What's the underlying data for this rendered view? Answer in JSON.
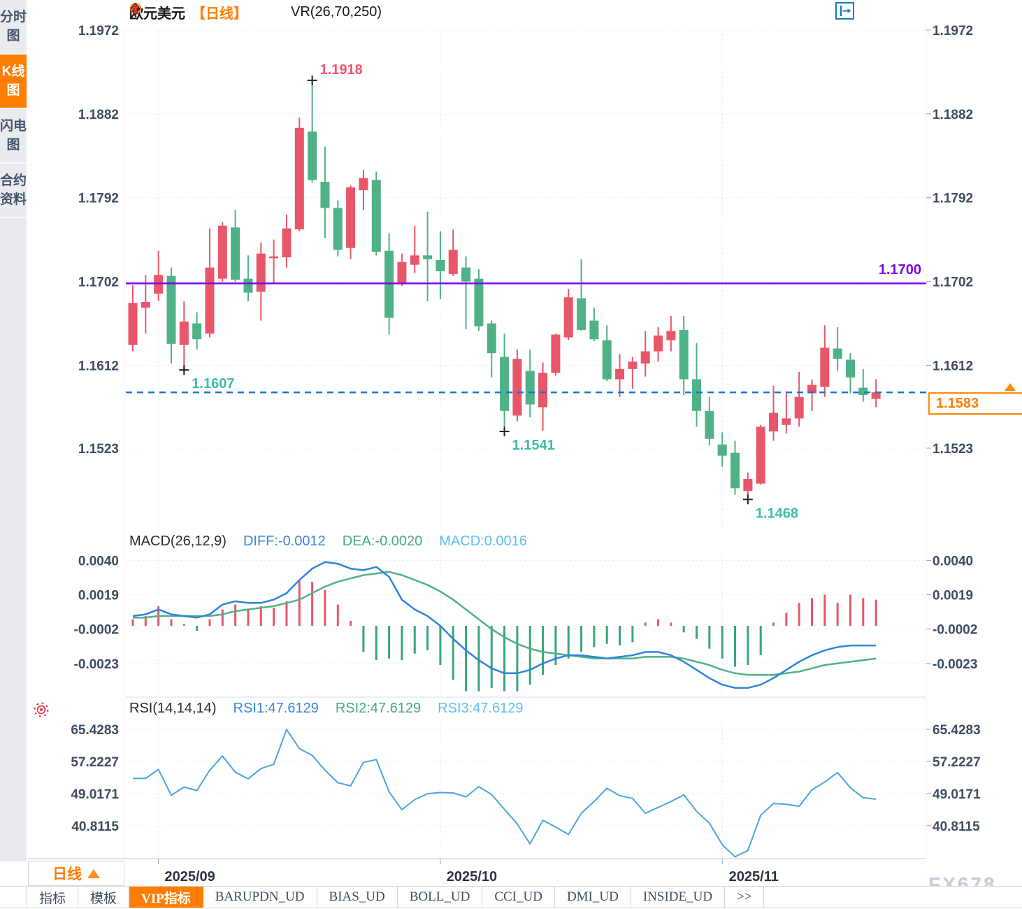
{
  "app": {
    "watermark": "FX678"
  },
  "sidebar": {
    "items": [
      {
        "label": "分时图",
        "active": false
      },
      {
        "label": "K线图",
        "active": true
      },
      {
        "label": "闪电图",
        "active": false
      },
      {
        "label": "合约资料",
        "active": false
      }
    ]
  },
  "header": {
    "symbol": "欧元美元",
    "period_tag": "【日线】",
    "vr_indicator": "VR(26,70,250)",
    "icons": [
      "plus-circle-icon",
      "red-up-arrow-icon"
    ]
  },
  "toolbar": {
    "icons": [
      "pan-move-icon",
      "fit-time-axis-icon",
      "fit-price-axis-icon",
      "go-to-latest-icon"
    ],
    "active_index": 2
  },
  "period_selector": {
    "label": "日线",
    "arrow_icon": "triangle-up-icon"
  },
  "tabs": [
    {
      "label": "指标",
      "active": false
    },
    {
      "label": "模板",
      "active": false
    },
    {
      "label": "VIP指标",
      "active": true
    },
    {
      "label": "BARUPDN_UD",
      "active": false
    },
    {
      "label": "BIAS_UD",
      "active": false
    },
    {
      "label": "BOLL_UD",
      "active": false
    },
    {
      "label": "CCI_UD",
      "active": false
    },
    {
      "label": "DMI_UD",
      "active": false
    },
    {
      "label": "INSIDE_UD",
      "active": false
    },
    {
      "label": ">>",
      "active": false
    }
  ],
  "colors": {
    "accent_orange": "#ff7d00",
    "candle_up": "#e8566a",
    "candle_down": "#4fb286",
    "line_purple": "#7d05e8",
    "dashed_blue": "#1677d2",
    "macd_diff_line": "#2e86d8",
    "macd_dea_line": "#4fb286",
    "rsi_line": "#4aa6dc",
    "icon_blue": "#1779c4",
    "high_label": "#f2566c",
    "low_label": "#3ebda4",
    "grid": "#e7e7e7"
  },
  "chart_data": {
    "type": "candlestick",
    "symbol": "欧元美元",
    "period": "日线",
    "price_axis": [
      {
        "label": "1.1972",
        "value": 1.1972
      },
      {
        "label": "1.1882",
        "value": 1.1882
      },
      {
        "label": "1.1792",
        "value": 1.1792
      },
      {
        "label": "1.1702",
        "value": 1.1702
      },
      {
        "label": "1.1612",
        "value": 1.1612
      },
      {
        "label": "1.1523",
        "value": 1.1523
      }
    ],
    "x_months": [
      {
        "label": "2025/09",
        "index": 2
      },
      {
        "label": "2025/10",
        "index": 24
      },
      {
        "label": "2025/11",
        "index": 46
      }
    ],
    "horizontal_line": {
      "label": "1.1700",
      "value": 1.17
    },
    "last_price": {
      "label": "1.1583",
      "value": 1.1583
    },
    "annotations": [
      {
        "label": "1.1918",
        "price": 1.1918,
        "index": 14,
        "type": "high"
      },
      {
        "label": "1.1607",
        "price": 1.1607,
        "index": 4,
        "type": "low"
      },
      {
        "label": "1.1541",
        "price": 1.1541,
        "index": 29,
        "type": "low"
      },
      {
        "label": "1.1468",
        "price": 1.1468,
        "index": 48,
        "type": "low"
      }
    ],
    "candles_ohlc": [
      [
        1.1634,
        1.1698,
        1.1627,
        1.1679
      ],
      [
        1.1674,
        1.1709,
        1.1646,
        1.168
      ],
      [
        1.1689,
        1.1735,
        1.1681,
        1.1709
      ],
      [
        1.1708,
        1.1717,
        1.1614,
        1.1635
      ],
      [
        1.1634,
        1.1681,
        1.1607,
        1.1659
      ],
      [
        1.1657,
        1.1669,
        1.1629,
        1.164
      ],
      [
        1.1646,
        1.1759,
        1.1642,
        1.1717
      ],
      [
        1.1705,
        1.1766,
        1.1702,
        1.1762
      ],
      [
        1.176,
        1.1779,
        1.1702,
        1.1704
      ],
      [
        1.1705,
        1.173,
        1.1681,
        1.169
      ],
      [
        1.1691,
        1.1744,
        1.166,
        1.1732
      ],
      [
        1.1727,
        1.1747,
        1.17,
        1.1729
      ],
      [
        1.1728,
        1.1774,
        1.1717,
        1.1759
      ],
      [
        1.1758,
        1.1878,
        1.1756,
        1.1867
      ],
      [
        1.1863,
        1.1918,
        1.1808,
        1.1811
      ],
      [
        1.1809,
        1.1847,
        1.1749,
        1.1781
      ],
      [
        1.1781,
        1.1789,
        1.1729,
        1.1736
      ],
      [
        1.1738,
        1.1805,
        1.1726,
        1.1803
      ],
      [
        1.18,
        1.1822,
        1.1779,
        1.1813
      ],
      [
        1.1811,
        1.182,
        1.173,
        1.1734
      ],
      [
        1.1735,
        1.1754,
        1.1645,
        1.1663
      ],
      [
        1.1699,
        1.1732,
        1.1697,
        1.1723
      ],
      [
        1.172,
        1.1762,
        1.1711,
        1.173
      ],
      [
        1.173,
        1.1777,
        1.1681,
        1.1726
      ],
      [
        1.1725,
        1.1756,
        1.1683,
        1.1713
      ],
      [
        1.171,
        1.1758,
        1.1708,
        1.1736
      ],
      [
        1.1717,
        1.1729,
        1.1651,
        1.1702
      ],
      [
        1.1705,
        1.1715,
        1.1649,
        1.1654
      ],
      [
        1.1657,
        1.166,
        1.1599,
        1.1625
      ],
      [
        1.1621,
        1.1646,
        1.1541,
        1.1563
      ],
      [
        1.1558,
        1.1629,
        1.1552,
        1.1619
      ],
      [
        1.1606,
        1.1629,
        1.1556,
        1.157
      ],
      [
        1.1567,
        1.1615,
        1.1542,
        1.1604
      ],
      [
        1.1604,
        1.1646,
        1.1601,
        1.1645
      ],
      [
        1.1642,
        1.1694,
        1.1639,
        1.1685
      ],
      [
        1.1684,
        1.1726,
        1.1649,
        1.165
      ],
      [
        1.166,
        1.1674,
        1.1638,
        1.164
      ],
      [
        1.1639,
        1.1655,
        1.1595,
        1.1597
      ],
      [
        1.1597,
        1.1624,
        1.1578,
        1.1608
      ],
      [
        1.1608,
        1.1621,
        1.1587,
        1.1616
      ],
      [
        1.1614,
        1.1649,
        1.16,
        1.1627
      ],
      [
        1.1627,
        1.1653,
        1.1616,
        1.1644
      ],
      [
        1.1639,
        1.1665,
        1.1627,
        1.1649
      ],
      [
        1.165,
        1.1665,
        1.158,
        1.1597
      ],
      [
        1.1597,
        1.1636,
        1.1546,
        1.1563
      ],
      [
        1.1563,
        1.1578,
        1.1526,
        1.1533
      ],
      [
        1.1527,
        1.154,
        1.1503,
        1.1515
      ],
      [
        1.1518,
        1.1531,
        1.1473,
        1.148
      ],
      [
        1.1477,
        1.1497,
        1.1468,
        1.149
      ],
      [
        1.1485,
        1.1548,
        1.1484,
        1.1546
      ],
      [
        1.1541,
        1.159,
        1.1531,
        1.1561
      ],
      [
        1.1548,
        1.1584,
        1.1539,
        1.1555
      ],
      [
        1.1555,
        1.1605,
        1.1546,
        1.1578
      ],
      [
        1.1582,
        1.1597,
        1.1563,
        1.1591
      ],
      [
        1.1589,
        1.1655,
        1.1578,
        1.1631
      ],
      [
        1.163,
        1.1653,
        1.1606,
        1.1619
      ],
      [
        1.1618,
        1.1625,
        1.1582,
        1.1599
      ],
      [
        1.1588,
        1.1608,
        1.1573,
        1.158
      ],
      [
        1.1576,
        1.1597,
        1.1567,
        1.1583
      ]
    ],
    "macd": {
      "title": "MACD(26,12,9)",
      "labels": {
        "diff": "DIFF:-0.0012",
        "dea": "DEA:-0.0020",
        "macd": "MACD:0.0016"
      },
      "axis": [
        {
          "label": "0.0040",
          "value": 0.004
        },
        {
          "label": "0.0019",
          "value": 0.0019
        },
        {
          "label": "-0.0002",
          "value": -0.0002
        },
        {
          "label": "-0.0023",
          "value": -0.0023
        }
      ],
      "diff": [
        0.0006,
        0.0007,
        0.001,
        0.0007,
        0.0006,
        0.0005,
        0.0007,
        0.0013,
        0.0015,
        0.0014,
        0.0014,
        0.0016,
        0.002,
        0.0028,
        0.0035,
        0.0039,
        0.0038,
        0.0035,
        0.0034,
        0.0036,
        0.003,
        0.0016,
        0.001,
        0.0006,
        0.0,
        -0.0008,
        -0.0015,
        -0.0021,
        -0.0026,
        -0.0029,
        -0.0029,
        -0.0027,
        -0.0023,
        -0.002,
        -0.0018,
        -0.0018,
        -0.0019,
        -0.002,
        -0.0019,
        -0.0018,
        -0.0016,
        -0.0016,
        -0.0018,
        -0.0022,
        -0.0027,
        -0.0032,
        -0.0036,
        -0.0038,
        -0.0038,
        -0.0036,
        -0.0032,
        -0.0027,
        -0.0022,
        -0.0018,
        -0.0015,
        -0.0013,
        -0.0012,
        -0.0012,
        -0.0012
      ],
      "dea": [
        0.0005,
        0.0005,
        0.0006,
        0.0006,
        0.0006,
        0.0006,
        0.0006,
        0.0007,
        0.0009,
        0.001,
        0.0011,
        0.0012,
        0.0014,
        0.0016,
        0.002,
        0.0024,
        0.0027,
        0.0029,
        0.0031,
        0.0032,
        0.0033,
        0.0031,
        0.0028,
        0.0025,
        0.0021,
        0.0016,
        0.001,
        0.0004,
        -0.0002,
        -0.0007,
        -0.0011,
        -0.0014,
        -0.0016,
        -0.0017,
        -0.0018,
        -0.0019,
        -0.002,
        -0.002,
        -0.002,
        -0.002,
        -0.0019,
        -0.0019,
        -0.0019,
        -0.002,
        -0.0022,
        -0.0024,
        -0.0027,
        -0.0029,
        -0.003,
        -0.003,
        -0.003,
        -0.0029,
        -0.0028,
        -0.0026,
        -0.0024,
        -0.0023,
        -0.0022,
        -0.0021,
        -0.002
      ],
      "hist": [
        0.0004,
        0.0006,
        0.0012,
        0.0004,
        0.0001,
        -0.0003,
        0.0004,
        0.001,
        0.0013,
        0.001,
        0.0012,
        0.0011,
        0.0015,
        0.0028,
        0.0027,
        0.0022,
        0.0013,
        0.0003,
        -0.0016,
        -0.0021,
        -0.002,
        -0.0021,
        -0.0017,
        -0.0015,
        -0.0024,
        -0.0033,
        -0.004,
        -0.004,
        -0.0038,
        -0.004,
        -0.004,
        -0.0036,
        -0.003,
        -0.0024,
        -0.002,
        -0.0016,
        -0.0013,
        -0.0011,
        -0.0012,
        -0.001,
        0.0002,
        0.0004,
        0.0002,
        -0.0004,
        -0.0008,
        -0.0014,
        -0.002,
        -0.0025,
        -0.0024,
        -0.0018,
        0.0002,
        0.0008,
        0.0014,
        0.0017,
        0.0019,
        0.0014,
        0.0019,
        0.0017,
        0.0016
      ]
    },
    "rsi": {
      "title": "RSI(14,14,14)",
      "labels": {
        "rsi1": "RSI1:47.6129",
        "rsi2": "RSI2:47.6129",
        "rsi3": "RSI3:47.6129"
      },
      "axis": [
        {
          "label": "65.4283",
          "value": 65.4283
        },
        {
          "label": "57.2227",
          "value": 57.2227
        },
        {
          "label": "49.0171",
          "value": 49.0171
        },
        {
          "label": "40.8115",
          "value": 40.8115
        }
      ],
      "values": [
        52.9,
        52.9,
        55.2,
        48.6,
        50.7,
        49.8,
        55.0,
        58.6,
        54.5,
        52.8,
        55.4,
        56.5,
        65.4,
        60.5,
        58.8,
        55.0,
        51.8,
        51.0,
        57.0,
        57.7,
        49.5,
        44.9,
        47.5,
        49.0,
        49.3,
        49.2,
        48.2,
        50.8,
        48.8,
        45.0,
        41.3,
        36.2,
        42.2,
        40.5,
        38.6,
        44.0,
        47.0,
        50.4,
        48.5,
        47.8,
        44.0,
        45.5,
        47.0,
        48.7,
        44.5,
        41.5,
        36.0,
        32.9,
        34.5,
        43.5,
        46.5,
        46.3,
        45.8,
        50.0,
        52.0,
        54.4,
        50.5,
        48.0,
        47.6
      ]
    }
  }
}
